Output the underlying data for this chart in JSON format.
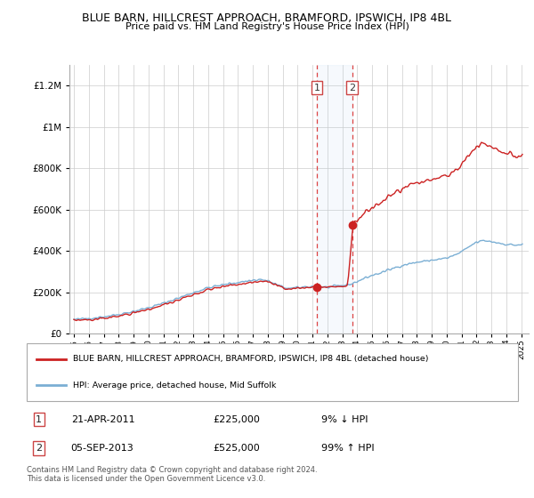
{
  "title": "BLUE BARN, HILLCREST APPROACH, BRAMFORD, IPSWICH, IP8 4BL",
  "subtitle": "Price paid vs. HM Land Registry's House Price Index (HPI)",
  "hpi_color": "#7bafd4",
  "price_color": "#cc2222",
  "transaction1": {
    "year": 2011.3,
    "price": 225000,
    "label": "1",
    "date": "21-APR-2011",
    "amount": "£225,000",
    "pct": "9% ↓ HPI"
  },
  "transaction2": {
    "year": 2013.67,
    "price": 525000,
    "label": "2",
    "date": "05-SEP-2013",
    "amount": "£525,000",
    "pct": "99% ↑ HPI"
  },
  "legend_label_red": "BLUE BARN, HILLCREST APPROACH, BRAMFORD, IPSWICH, IP8 4BL (detached house)",
  "legend_label_blue": "HPI: Average price, detached house, Mid Suffolk",
  "footer": "Contains HM Land Registry data © Crown copyright and database right 2024.\nThis data is licensed under the Open Government Licence v3.0.",
  "ylim": [
    0,
    1300000
  ],
  "yticks": [
    0,
    200000,
    400000,
    600000,
    800000,
    1000000,
    1200000
  ],
  "xlim_left": 1995.0,
  "xlim_right": 2025.5,
  "shade_x1": 2011.3,
  "shade_x2": 2013.67
}
